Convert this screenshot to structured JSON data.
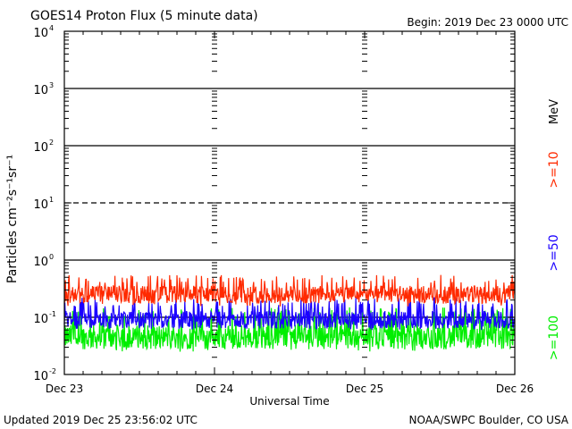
{
  "chart_data": {
    "type": "line",
    "title": "GOES14 Proton Flux (5 minute data)",
    "begin_label": "Begin: 2019 Dec 23 0000 UTC",
    "xlabel": "Universal Time",
    "ylabel": "Particles cm⁻²s⁻¹sr⁻¹",
    "unit_label": "MeV",
    "y_scale": "log",
    "ylim": [
      0.01,
      10000
    ],
    "y_tick_labels": [
      {
        "base": "10",
        "exp": "-2",
        "value": 0.01
      },
      {
        "base": "10",
        "exp": "-1",
        "value": 0.1
      },
      {
        "base": "10",
        "exp": "0",
        "value": 1
      },
      {
        "base": "10",
        "exp": "1",
        "value": 10
      },
      {
        "base": "10",
        "exp": "2",
        "value": 100
      },
      {
        "base": "10",
        "exp": "3",
        "value": 1000
      },
      {
        "base": "10",
        "exp": "4",
        "value": 10000
      }
    ],
    "x_categories": [
      "Dec 23",
      "Dec 24",
      "Dec 25",
      "Dec 26"
    ],
    "xlim_days": [
      0,
      3
    ],
    "grid": true,
    "threshold_lines": [
      {
        "value": 1000,
        "style": "solid"
      },
      {
        "value": 100,
        "style": "solid"
      },
      {
        "value": 10,
        "style": "dashed"
      },
      {
        "value": 1,
        "style": "solid"
      },
      {
        "value": 0.1,
        "style": "solid"
      }
    ],
    "series": [
      {
        "name": ">=10",
        "color": "#ff2a00",
        "baseline": 0.25,
        "range": [
          0.15,
          0.55
        ]
      },
      {
        "name": ">=50",
        "color": "#1a00ff",
        "baseline": 0.09,
        "range": [
          0.06,
          0.22
        ]
      },
      {
        "name": ">=100",
        "color": "#00ee00",
        "baseline": 0.045,
        "range": [
          0.025,
          0.15
        ]
      }
    ]
  },
  "footer": {
    "updated": "Updated 2019 Dec 25 23:56:02 UTC",
    "source": "NOAA/SWPC Boulder, CO USA"
  }
}
